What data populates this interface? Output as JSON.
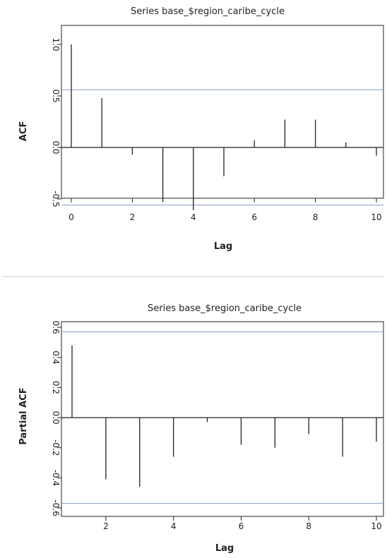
{
  "chart_data": [
    {
      "type": "bar",
      "subtype": "acf-spike",
      "title": "Series base_$region_caribe_cycle",
      "xlabel": "Lag",
      "ylabel": "ACF",
      "xlim": [
        0,
        10
      ],
      "ylim": [
        -0.65,
        1.05
      ],
      "xticks": [
        "0",
        "2",
        "4",
        "6",
        "8",
        "10"
      ],
      "yticks": [
        "-0.5",
        "0.0",
        "0.5",
        "1.0"
      ],
      "x": [
        0,
        1,
        2,
        3,
        4,
        5,
        6,
        7,
        8,
        9,
        10
      ],
      "values": [
        1.0,
        0.48,
        -0.07,
        -0.53,
        -0.61,
        -0.28,
        0.07,
        0.27,
        0.27,
        0.05,
        -0.08
      ],
      "confidence_band": [
        -0.56,
        0.56
      ],
      "colors": {
        "spike": "#222222",
        "band": "#8899cc",
        "frame": "#222222"
      }
    },
    {
      "type": "bar",
      "subtype": "pacf-spike",
      "title": "Series base_$region_caribe_cycle",
      "xlabel": "Lag",
      "ylabel": "Partial ACF",
      "xlim": [
        1,
        10
      ],
      "ylim": [
        -0.6,
        0.6
      ],
      "xticks": [
        "2",
        "4",
        "6",
        "8",
        "10"
      ],
      "yticks": [
        "-0.6",
        "-0.4",
        "-0.2",
        "0.0",
        "0.2",
        "0.4",
        "0.6"
      ],
      "x": [
        1,
        2,
        3,
        4,
        5,
        6,
        7,
        8,
        9,
        10
      ],
      "values": [
        0.48,
        -0.41,
        -0.46,
        -0.26,
        -0.03,
        -0.18,
        -0.2,
        -0.11,
        -0.26,
        -0.16
      ],
      "confidence_band": [
        -0.57,
        0.57
      ],
      "colors": {
        "spike": "#222222",
        "band": "#8899cc",
        "frame": "#222222"
      }
    }
  ]
}
